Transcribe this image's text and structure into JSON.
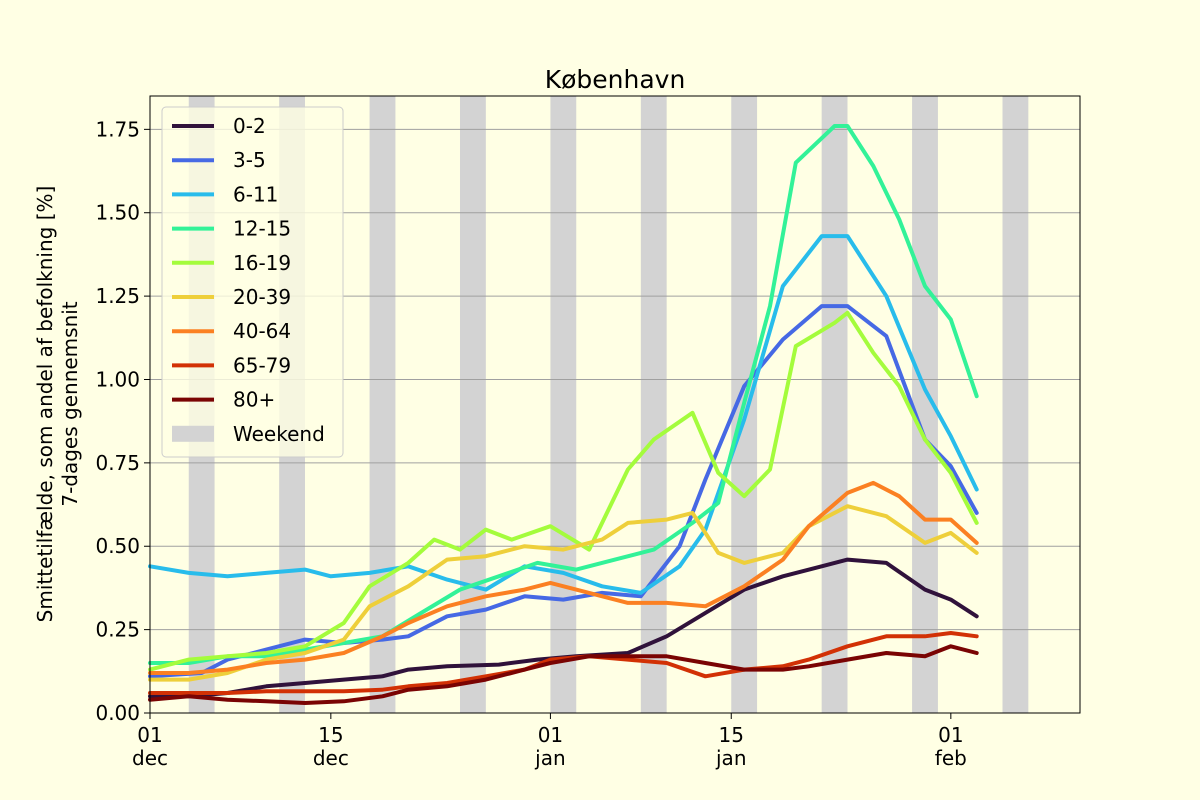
{
  "chart_data": {
    "type": "line",
    "title": "København",
    "ylabel_line1": "Smittetilfælde, som andel af befolkning [%]",
    "ylabel_line2": "7-dages gennemsnit",
    "xlabel": "",
    "x_start": "2021-12-01",
    "x_end": "2022-02-11",
    "ylim": [
      0,
      1.85
    ],
    "grid": "horizontal",
    "legend_position": "upper-left",
    "x_ticks": [
      {
        "date": "2021-12-01",
        "day": "01",
        "month": "dec"
      },
      {
        "date": "2021-12-15",
        "day": "15",
        "month": "dec"
      },
      {
        "date": "2022-01-01",
        "day": "01",
        "month": "jan"
      },
      {
        "date": "2022-01-15",
        "day": "15",
        "month": "jan"
      },
      {
        "date": "2022-02-01",
        "day": "01",
        "month": "feb"
      }
    ],
    "y_ticks": [
      {
        "value": 0,
        "label": "0.00"
      },
      {
        "value": 0.25,
        "label": "0.25"
      },
      {
        "value": 0.5,
        "label": "0.50"
      },
      {
        "value": 0.75,
        "label": "0.75"
      },
      {
        "value": 1.0,
        "label": "1.00"
      },
      {
        "value": 1.25,
        "label": "1.25"
      },
      {
        "value": 1.5,
        "label": "1.50"
      },
      {
        "value": 1.75,
        "label": "1.75"
      }
    ],
    "weekend": {
      "label": "Weekend",
      "color": "#d3d3d3",
      "spans": [
        [
          "2021-12-04",
          "2021-12-06"
        ],
        [
          "2021-12-11",
          "2021-12-13"
        ],
        [
          "2021-12-18",
          "2021-12-20"
        ],
        [
          "2021-12-25",
          "2021-12-27"
        ],
        [
          "2022-01-01",
          "2022-01-03"
        ],
        [
          "2022-01-08",
          "2022-01-10"
        ],
        [
          "2022-01-15",
          "2022-01-17"
        ],
        [
          "2022-01-22",
          "2022-01-24"
        ],
        [
          "2022-01-29",
          "2022-01-31"
        ],
        [
          "2022-02-05",
          "2022-02-07"
        ]
      ]
    },
    "series": [
      {
        "name": "0-2",
        "color": "#30123b",
        "points": [
          [
            "2021-12-01",
            0.05
          ],
          [
            "2021-12-04",
            0.05
          ],
          [
            "2021-12-07",
            0.06
          ],
          [
            "2021-12-10",
            0.08
          ],
          [
            "2021-12-13",
            0.09
          ],
          [
            "2021-12-16",
            0.1
          ],
          [
            "2021-12-19",
            0.11
          ],
          [
            "2021-12-21",
            0.13
          ],
          [
            "2021-12-24",
            0.14
          ],
          [
            "2021-12-28",
            0.145
          ],
          [
            "2021-12-31",
            0.16
          ],
          [
            "2022-01-03",
            0.17
          ],
          [
            "2022-01-07",
            0.18
          ],
          [
            "2022-01-10",
            0.23
          ],
          [
            "2022-01-13",
            0.3
          ],
          [
            "2022-01-16",
            0.37
          ],
          [
            "2022-01-19",
            0.41
          ],
          [
            "2022-01-22",
            0.44
          ],
          [
            "2022-01-24",
            0.46
          ],
          [
            "2022-01-27",
            0.45
          ],
          [
            "2022-01-30",
            0.37
          ],
          [
            "2022-02-01",
            0.34
          ],
          [
            "2022-02-03",
            0.29
          ]
        ]
      },
      {
        "name": "3-5",
        "color": "#4669e4",
        "points": [
          [
            "2021-12-01",
            0.11
          ],
          [
            "2021-12-05",
            0.12
          ],
          [
            "2021-12-07",
            0.16
          ],
          [
            "2021-12-10",
            0.19
          ],
          [
            "2021-12-13",
            0.22
          ],
          [
            "2021-12-16",
            0.21
          ],
          [
            "2021-12-19",
            0.22
          ],
          [
            "2021-12-21",
            0.23
          ],
          [
            "2021-12-24",
            0.29
          ],
          [
            "2021-12-27",
            0.31
          ],
          [
            "2021-12-30",
            0.35
          ],
          [
            "2022-01-02",
            0.34
          ],
          [
            "2022-01-05",
            0.36
          ],
          [
            "2022-01-08",
            0.35
          ],
          [
            "2022-01-11",
            0.5
          ],
          [
            "2022-01-13",
            0.7
          ],
          [
            "2022-01-16",
            0.98
          ],
          [
            "2022-01-19",
            1.12
          ],
          [
            "2022-01-22",
            1.22
          ],
          [
            "2022-01-24",
            1.22
          ],
          [
            "2022-01-27",
            1.13
          ],
          [
            "2022-01-30",
            0.82
          ],
          [
            "2022-02-01",
            0.74
          ],
          [
            "2022-02-03",
            0.6
          ]
        ]
      },
      {
        "name": "6-11",
        "color": "#28bceb",
        "points": [
          [
            "2021-12-01",
            0.44
          ],
          [
            "2021-12-04",
            0.42
          ],
          [
            "2021-12-07",
            0.41
          ],
          [
            "2021-12-10",
            0.42
          ],
          [
            "2021-12-13",
            0.43
          ],
          [
            "2021-12-15",
            0.41
          ],
          [
            "2021-12-18",
            0.42
          ],
          [
            "2021-12-21",
            0.44
          ],
          [
            "2021-12-24",
            0.4
          ],
          [
            "2021-12-27",
            0.37
          ],
          [
            "2021-12-30",
            0.44
          ],
          [
            "2022-01-02",
            0.42
          ],
          [
            "2022-01-05",
            0.38
          ],
          [
            "2022-01-08",
            0.36
          ],
          [
            "2022-01-11",
            0.44
          ],
          [
            "2022-01-13",
            0.55
          ],
          [
            "2022-01-16",
            0.88
          ],
          [
            "2022-01-19",
            1.28
          ],
          [
            "2022-01-22",
            1.43
          ],
          [
            "2022-01-24",
            1.43
          ],
          [
            "2022-01-27",
            1.25
          ],
          [
            "2022-01-30",
            0.97
          ],
          [
            "2022-02-01",
            0.83
          ],
          [
            "2022-02-03",
            0.67
          ]
        ]
      },
      {
        "name": "12-15",
        "color": "#32f298",
        "points": [
          [
            "2021-12-01",
            0.15
          ],
          [
            "2021-12-04",
            0.15
          ],
          [
            "2021-12-07",
            0.17
          ],
          [
            "2021-12-10",
            0.17
          ],
          [
            "2021-12-13",
            0.19
          ],
          [
            "2021-12-16",
            0.21
          ],
          [
            "2021-12-19",
            0.23
          ],
          [
            "2021-12-22",
            0.3
          ],
          [
            "2021-12-25",
            0.37
          ],
          [
            "2021-12-28",
            0.41
          ],
          [
            "2021-12-31",
            0.45
          ],
          [
            "2022-01-03",
            0.43
          ],
          [
            "2022-01-06",
            0.46
          ],
          [
            "2022-01-09",
            0.49
          ],
          [
            "2022-01-12",
            0.57
          ],
          [
            "2022-01-14",
            0.63
          ],
          [
            "2022-01-16",
            0.93
          ],
          [
            "2022-01-18",
            1.22
          ],
          [
            "2022-01-20",
            1.65
          ],
          [
            "2022-01-23",
            1.76
          ],
          [
            "2022-01-24",
            1.76
          ],
          [
            "2022-01-26",
            1.64
          ],
          [
            "2022-01-28",
            1.48
          ],
          [
            "2022-01-30",
            1.28
          ],
          [
            "2022-02-01",
            1.18
          ],
          [
            "2022-02-03",
            0.95
          ]
        ]
      },
      {
        "name": "16-19",
        "color": "#a4fc3c",
        "points": [
          [
            "2021-12-01",
            0.13
          ],
          [
            "2021-12-04",
            0.16
          ],
          [
            "2021-12-07",
            0.17
          ],
          [
            "2021-12-10",
            0.18
          ],
          [
            "2021-12-13",
            0.2
          ],
          [
            "2021-12-16",
            0.27
          ],
          [
            "2021-12-18",
            0.38
          ],
          [
            "2021-12-21",
            0.45
          ],
          [
            "2021-12-23",
            0.52
          ],
          [
            "2021-12-25",
            0.49
          ],
          [
            "2021-12-27",
            0.55
          ],
          [
            "2021-12-29",
            0.52
          ],
          [
            "2022-01-01",
            0.56
          ],
          [
            "2022-01-04",
            0.49
          ],
          [
            "2022-01-07",
            0.73
          ],
          [
            "2022-01-09",
            0.82
          ],
          [
            "2022-01-12",
            0.9
          ],
          [
            "2022-01-14",
            0.72
          ],
          [
            "2022-01-16",
            0.65
          ],
          [
            "2022-01-18",
            0.73
          ],
          [
            "2022-01-20",
            1.1
          ],
          [
            "2022-01-23",
            1.17
          ],
          [
            "2022-01-24",
            1.2
          ],
          [
            "2022-01-26",
            1.08
          ],
          [
            "2022-01-28",
            0.98
          ],
          [
            "2022-01-30",
            0.82
          ],
          [
            "2022-02-01",
            0.72
          ],
          [
            "2022-02-03",
            0.57
          ]
        ]
      },
      {
        "name": "20-39",
        "color": "#eecf3a",
        "points": [
          [
            "2021-12-01",
            0.1
          ],
          [
            "2021-12-04",
            0.1
          ],
          [
            "2021-12-07",
            0.12
          ],
          [
            "2021-12-10",
            0.16
          ],
          [
            "2021-12-13",
            0.18
          ],
          [
            "2021-12-16",
            0.22
          ],
          [
            "2021-12-18",
            0.32
          ],
          [
            "2021-12-21",
            0.38
          ],
          [
            "2021-12-24",
            0.46
          ],
          [
            "2021-12-27",
            0.47
          ],
          [
            "2021-12-30",
            0.5
          ],
          [
            "2022-01-02",
            0.49
          ],
          [
            "2022-01-05",
            0.52
          ],
          [
            "2022-01-07",
            0.57
          ],
          [
            "2022-01-10",
            0.58
          ],
          [
            "2022-01-12",
            0.6
          ],
          [
            "2022-01-14",
            0.48
          ],
          [
            "2022-01-16",
            0.45
          ],
          [
            "2022-01-19",
            0.48
          ],
          [
            "2022-01-21",
            0.56
          ],
          [
            "2022-01-24",
            0.62
          ],
          [
            "2022-01-27",
            0.59
          ],
          [
            "2022-01-30",
            0.51
          ],
          [
            "2022-02-01",
            0.54
          ],
          [
            "2022-02-03",
            0.48
          ]
        ]
      },
      {
        "name": "40-64",
        "color": "#fb8022",
        "points": [
          [
            "2021-12-01",
            0.12
          ],
          [
            "2021-12-04",
            0.12
          ],
          [
            "2021-12-07",
            0.13
          ],
          [
            "2021-12-10",
            0.15
          ],
          [
            "2021-12-13",
            0.16
          ],
          [
            "2021-12-16",
            0.18
          ],
          [
            "2021-12-19",
            0.23
          ],
          [
            "2021-12-21",
            0.27
          ],
          [
            "2021-12-24",
            0.32
          ],
          [
            "2021-12-27",
            0.35
          ],
          [
            "2021-12-30",
            0.37
          ],
          [
            "2022-01-01",
            0.39
          ],
          [
            "2022-01-04",
            0.36
          ],
          [
            "2022-01-07",
            0.33
          ],
          [
            "2022-01-10",
            0.33
          ],
          [
            "2022-01-13",
            0.32
          ],
          [
            "2022-01-16",
            0.38
          ],
          [
            "2022-01-19",
            0.46
          ],
          [
            "2022-01-21",
            0.56
          ],
          [
            "2022-01-24",
            0.66
          ],
          [
            "2022-01-26",
            0.69
          ],
          [
            "2022-01-28",
            0.65
          ],
          [
            "2022-01-30",
            0.58
          ],
          [
            "2022-02-01",
            0.58
          ],
          [
            "2022-02-03",
            0.51
          ]
        ]
      },
      {
        "name": "65-79",
        "color": "#d23105",
        "points": [
          [
            "2021-12-01",
            0.06
          ],
          [
            "2021-12-04",
            0.06
          ],
          [
            "2021-12-07",
            0.06
          ],
          [
            "2021-12-10",
            0.065
          ],
          [
            "2021-12-13",
            0.065
          ],
          [
            "2021-12-16",
            0.065
          ],
          [
            "2021-12-19",
            0.07
          ],
          [
            "2021-12-21",
            0.08
          ],
          [
            "2021-12-24",
            0.09
          ],
          [
            "2021-12-27",
            0.11
          ],
          [
            "2021-12-30",
            0.13
          ],
          [
            "2022-01-01",
            0.16
          ],
          [
            "2022-01-04",
            0.17
          ],
          [
            "2022-01-07",
            0.16
          ],
          [
            "2022-01-10",
            0.15
          ],
          [
            "2022-01-13",
            0.11
          ],
          [
            "2022-01-16",
            0.13
          ],
          [
            "2022-01-19",
            0.14
          ],
          [
            "2022-01-21",
            0.16
          ],
          [
            "2022-01-24",
            0.2
          ],
          [
            "2022-01-27",
            0.23
          ],
          [
            "2022-01-30",
            0.23
          ],
          [
            "2022-02-01",
            0.24
          ],
          [
            "2022-02-03",
            0.23
          ]
        ]
      },
      {
        "name": "80+",
        "color": "#7a0403",
        "points": [
          [
            "2021-12-01",
            0.04
          ],
          [
            "2021-12-04",
            0.05
          ],
          [
            "2021-12-07",
            0.04
          ],
          [
            "2021-12-10",
            0.035
          ],
          [
            "2021-12-13",
            0.03
          ],
          [
            "2021-12-16",
            0.035
          ],
          [
            "2021-12-19",
            0.05
          ],
          [
            "2021-12-21",
            0.07
          ],
          [
            "2021-12-24",
            0.08
          ],
          [
            "2021-12-27",
            0.1
          ],
          [
            "2021-12-30",
            0.13
          ],
          [
            "2022-01-01",
            0.15
          ],
          [
            "2022-01-04",
            0.17
          ],
          [
            "2022-01-07",
            0.17
          ],
          [
            "2022-01-10",
            0.17
          ],
          [
            "2022-01-13",
            0.15
          ],
          [
            "2022-01-16",
            0.13
          ],
          [
            "2022-01-19",
            0.13
          ],
          [
            "2022-01-21",
            0.14
          ],
          [
            "2022-01-24",
            0.16
          ],
          [
            "2022-01-27",
            0.18
          ],
          [
            "2022-01-30",
            0.17
          ],
          [
            "2022-02-01",
            0.2
          ],
          [
            "2022-02-03",
            0.18
          ]
        ]
      }
    ]
  }
}
